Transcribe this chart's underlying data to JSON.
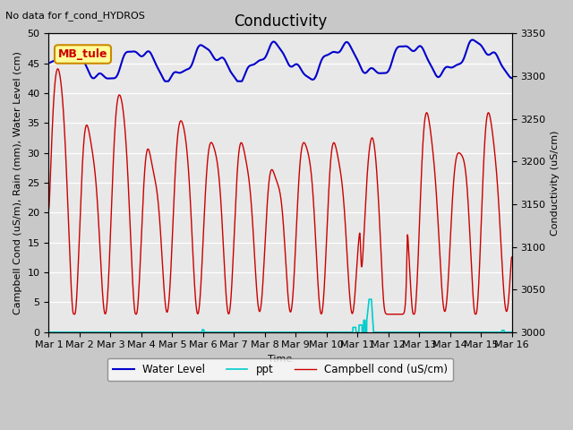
{
  "title": "Conductivity",
  "top_left_text": "No data for f_cond_HYDROS",
  "xlabel": "Time",
  "ylabel_left": "Campbell Cond (uS/m), Rain (mm), Water Level (cm)",
  "ylabel_right": "Conductivity (uS/cm)",
  "ylim_left": [
    0,
    50
  ],
  "ylim_right": [
    3000,
    3350
  ],
  "xlim": [
    0,
    15
  ],
  "xtick_labels": [
    "Mar 1",
    "Mar 2",
    "Mar 3",
    "Mar 4",
    "Mar 5",
    "Mar 6",
    "Mar 7",
    "Mar 8",
    "Mar 9",
    "Mar 10",
    "Mar 11",
    "Mar 12",
    "Mar 13",
    "Mar 14",
    "Mar 15",
    "Mar 16"
  ],
  "xtick_positions": [
    0,
    1,
    2,
    3,
    4,
    5,
    6,
    7,
    8,
    9,
    10,
    11,
    12,
    13,
    14,
    15
  ],
  "water_level_color": "#0000cc",
  "ppt_color": "#00cccc",
  "campbell_color": "#cc0000",
  "plot_bg_color": "#e8e8e8",
  "fig_bg_color": "#c8c8c8",
  "legend_entries": [
    "Water Level",
    "ppt",
    "Campbell cond (uS/cm)"
  ],
  "annotation_box": "MB_tule",
  "annotation_box_facecolor": "#ffff99",
  "annotation_box_edgecolor": "#cc8800",
  "title_fontsize": 12,
  "label_fontsize": 8,
  "tick_fontsize": 8,
  "topleft_fontsize": 8
}
